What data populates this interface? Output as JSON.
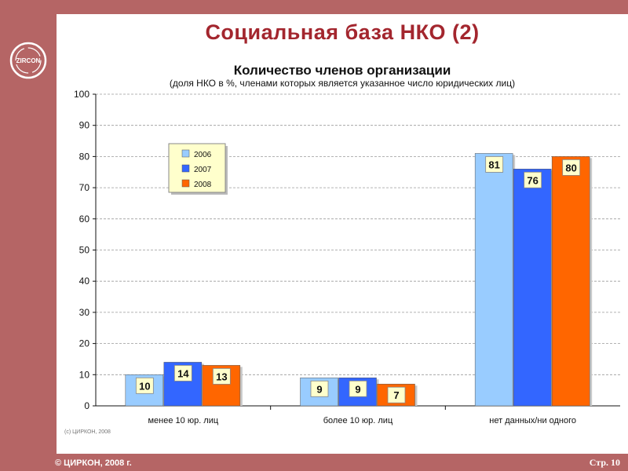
{
  "slide": {
    "title": "Социальная база НКО (2)",
    "logo_text": "ZIRCON",
    "footer_copy": "© ЦИРКОН, 2008 г.",
    "page": "Стр. 10",
    "credit": "(с) ЦИРКОН, 2008"
  },
  "colors": {
    "frame": "#b56565",
    "title": "#a3262e",
    "s2006": "#99ccff",
    "s2007": "#3366ff",
    "s2008": "#ff6600"
  },
  "chart_data": {
    "type": "bar",
    "title": "Количество членов организации",
    "subtitle": "(доля НКО в %, членами которых является указанное число юридических лиц)",
    "categories": [
      "менее 10 юр. лиц",
      "более 10 юр. лиц",
      "нет данных/ни одного"
    ],
    "series": [
      {
        "name": "2006",
        "values": [
          10,
          9,
          81
        ]
      },
      {
        "name": "2007",
        "values": [
          14,
          9,
          76
        ]
      },
      {
        "name": "2008",
        "values": [
          13,
          7,
          80
        ]
      }
    ],
    "ylim": [
      0,
      100
    ],
    "yticks": [
      0,
      10,
      20,
      30,
      40,
      50,
      60,
      70,
      80,
      90,
      100
    ],
    "grid": true,
    "legend": "top-left"
  }
}
